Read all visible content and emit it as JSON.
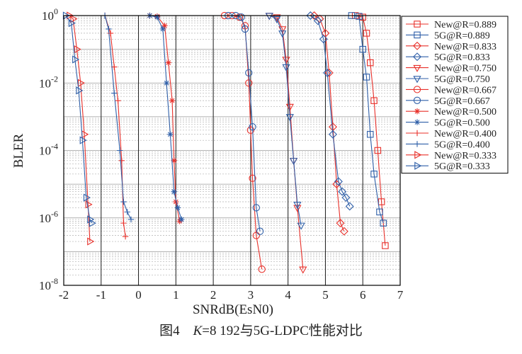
{
  "caption": {
    "figure": "图4",
    "k_symbol": "K",
    "rest": "=8 192与5G-LDPC性能对比"
  },
  "chart_data": {
    "type": "line",
    "xlabel": "SNRdB(EsN0)",
    "ylabel": "BLER",
    "xlim": [
      -2,
      7
    ],
    "ylim_exponents": [
      -8,
      0
    ],
    "yscale": "log",
    "x_ticks": [
      "-2",
      "-1",
      "0",
      "1",
      "2",
      "3",
      "4",
      "5",
      "6",
      "7"
    ],
    "y_ticks": [
      "10^0",
      "10^-2",
      "10^-4",
      "10^-6",
      "10^-8"
    ],
    "grid": true,
    "legend_position": "right",
    "colors": {
      "new": "#e8302a",
      "fiveg": "#2f5fa8"
    },
    "series": [
      {
        "name": "New@R=0.889",
        "color": "#e8302a",
        "marker": "square",
        "points": [
          [
            5.8,
            1.0
          ],
          [
            6.0,
            0.9
          ],
          [
            6.1,
            0.3
          ],
          [
            6.2,
            0.04
          ],
          [
            6.3,
            0.003
          ],
          [
            6.4,
            0.0001
          ],
          [
            6.5,
            3e-06
          ],
          [
            6.6,
            1.5e-07
          ]
        ]
      },
      {
        "name": "5G@R=0.889",
        "color": "#2f5fa8",
        "marker": "square",
        "points": [
          [
            5.7,
            1.0
          ],
          [
            5.9,
            0.95
          ],
          [
            6.0,
            0.1
          ],
          [
            6.1,
            0.015
          ],
          [
            6.2,
            0.0003
          ],
          [
            6.3,
            2e-05
          ],
          [
            6.45,
            1.5e-06
          ],
          [
            6.55,
            7e-07
          ]
        ]
      },
      {
        "name": "New@R=0.833",
        "color": "#e8302a",
        "marker": "diamond",
        "points": [
          [
            4.7,
            1.0
          ],
          [
            4.85,
            0.8
          ],
          [
            5.0,
            0.3
          ],
          [
            5.1,
            0.02
          ],
          [
            5.2,
            0.0005
          ],
          [
            5.3,
            1e-05
          ],
          [
            5.4,
            7e-07
          ],
          [
            5.5,
            4e-07
          ]
        ]
      },
      {
        "name": "5G@R=0.833",
        "color": "#2f5fa8",
        "marker": "diamond",
        "points": [
          [
            4.6,
            1.0
          ],
          [
            4.8,
            0.7
          ],
          [
            4.95,
            0.2
          ],
          [
            5.05,
            0.02
          ],
          [
            5.2,
            0.0003
          ],
          [
            5.35,
            1.2e-05
          ],
          [
            5.45,
            6e-06
          ],
          [
            5.55,
            4e-06
          ],
          [
            5.65,
            2.2e-06
          ]
        ]
      },
      {
        "name": "New@R=0.750",
        "color": "#e8302a",
        "marker": "triangle-down",
        "points": [
          [
            3.5,
            1.0
          ],
          [
            3.7,
            0.9
          ],
          [
            3.85,
            0.4
          ],
          [
            3.95,
            0.05
          ],
          [
            4.05,
            0.002
          ],
          [
            4.15,
            5e-05
          ],
          [
            4.25,
            2e-06
          ],
          [
            4.4,
            3e-08
          ]
        ]
      },
      {
        "name": "5G@R=0.750",
        "color": "#2f5fa8",
        "marker": "triangle-down",
        "points": [
          [
            3.5,
            1.0
          ],
          [
            3.7,
            0.8
          ],
          [
            3.85,
            0.3
          ],
          [
            3.95,
            0.03
          ],
          [
            4.05,
            0.001
          ],
          [
            4.15,
            5e-05
          ],
          [
            4.25,
            2.5e-06
          ],
          [
            4.35,
            6e-07
          ]
        ]
      },
      {
        "name": "New@R=0.667",
        "color": "#e8302a",
        "marker": "circle",
        "points": [
          [
            2.3,
            1.0
          ],
          [
            2.5,
            1.0
          ],
          [
            2.7,
            0.9
          ],
          [
            2.85,
            0.5
          ],
          [
            2.95,
            0.01
          ],
          [
            3.0,
            0.0004
          ],
          [
            3.05,
            1.5e-05
          ],
          [
            3.15,
            3e-07
          ],
          [
            3.3,
            3e-08
          ]
        ]
      },
      {
        "name": "5G@R=0.667",
        "color": "#2f5fa8",
        "marker": "circle",
        "points": [
          [
            2.4,
            1.0
          ],
          [
            2.6,
            1.0
          ],
          [
            2.75,
            0.9
          ],
          [
            2.85,
            0.4
          ],
          [
            2.95,
            0.02
          ],
          [
            3.05,
            0.0005
          ],
          [
            3.15,
            2e-06
          ],
          [
            3.25,
            4e-07
          ]
        ]
      },
      {
        "name": "New@R=0.500",
        "color": "#e8302a",
        "marker": "star",
        "points": [
          [
            0.3,
            1.0
          ],
          [
            0.5,
            0.95
          ],
          [
            0.7,
            0.5
          ],
          [
            0.8,
            0.04
          ],
          [
            0.9,
            0.003
          ],
          [
            0.95,
            5e-05
          ],
          [
            1.0,
            3e-06
          ],
          [
            1.1,
            8e-07
          ]
        ]
      },
      {
        "name": "5G@R=0.500",
        "color": "#2f5fa8",
        "marker": "star",
        "points": [
          [
            0.3,
            1.0
          ],
          [
            0.5,
            0.9
          ],
          [
            0.65,
            0.4
          ],
          [
            0.75,
            0.01
          ],
          [
            0.85,
            0.0003
          ],
          [
            0.95,
            6e-06
          ],
          [
            1.05,
            2e-06
          ],
          [
            1.15,
            9e-07
          ]
        ]
      },
      {
        "name": "New@R=0.400",
        "color": "#e8302a",
        "marker": "plus",
        "points": [
          [
            -0.9,
            1.0
          ],
          [
            -0.75,
            0.3
          ],
          [
            -0.65,
            0.03
          ],
          [
            -0.55,
            0.003
          ],
          [
            -0.45,
            5e-05
          ],
          [
            -0.4,
            7e-07
          ],
          [
            -0.35,
            2.8e-07
          ]
        ]
      },
      {
        "name": "5G@R=0.400",
        "color": "#2f5fa8",
        "marker": "plus",
        "points": [
          [
            -0.9,
            1.0
          ],
          [
            -0.8,
            0.4
          ],
          [
            -0.65,
            0.005
          ],
          [
            -0.5,
            0.0001
          ],
          [
            -0.4,
            3e-06
          ],
          [
            -0.3,
            1.5e-06
          ],
          [
            -0.2,
            9e-07
          ]
        ]
      },
      {
        "name": "New@R=0.333",
        "color": "#e8302a",
        "marker": "triangle-right",
        "points": [
          [
            -1.85,
            1.0
          ],
          [
            -1.75,
            0.8
          ],
          [
            -1.65,
            0.1
          ],
          [
            -1.55,
            0.01
          ],
          [
            -1.45,
            0.0003
          ],
          [
            -1.35,
            2.5e-06
          ],
          [
            -1.3,
            2e-07
          ]
        ]
      },
      {
        "name": "5G@R=0.333",
        "color": "#2f5fa8",
        "marker": "triangle-right",
        "points": [
          [
            -1.95,
            1.0
          ],
          [
            -1.8,
            0.6
          ],
          [
            -1.7,
            0.05
          ],
          [
            -1.6,
            0.006
          ],
          [
            -1.5,
            0.0002
          ],
          [
            -1.4,
            4e-06
          ],
          [
            -1.3,
            9e-07
          ],
          [
            -1.25,
            7e-07
          ]
        ]
      }
    ]
  }
}
